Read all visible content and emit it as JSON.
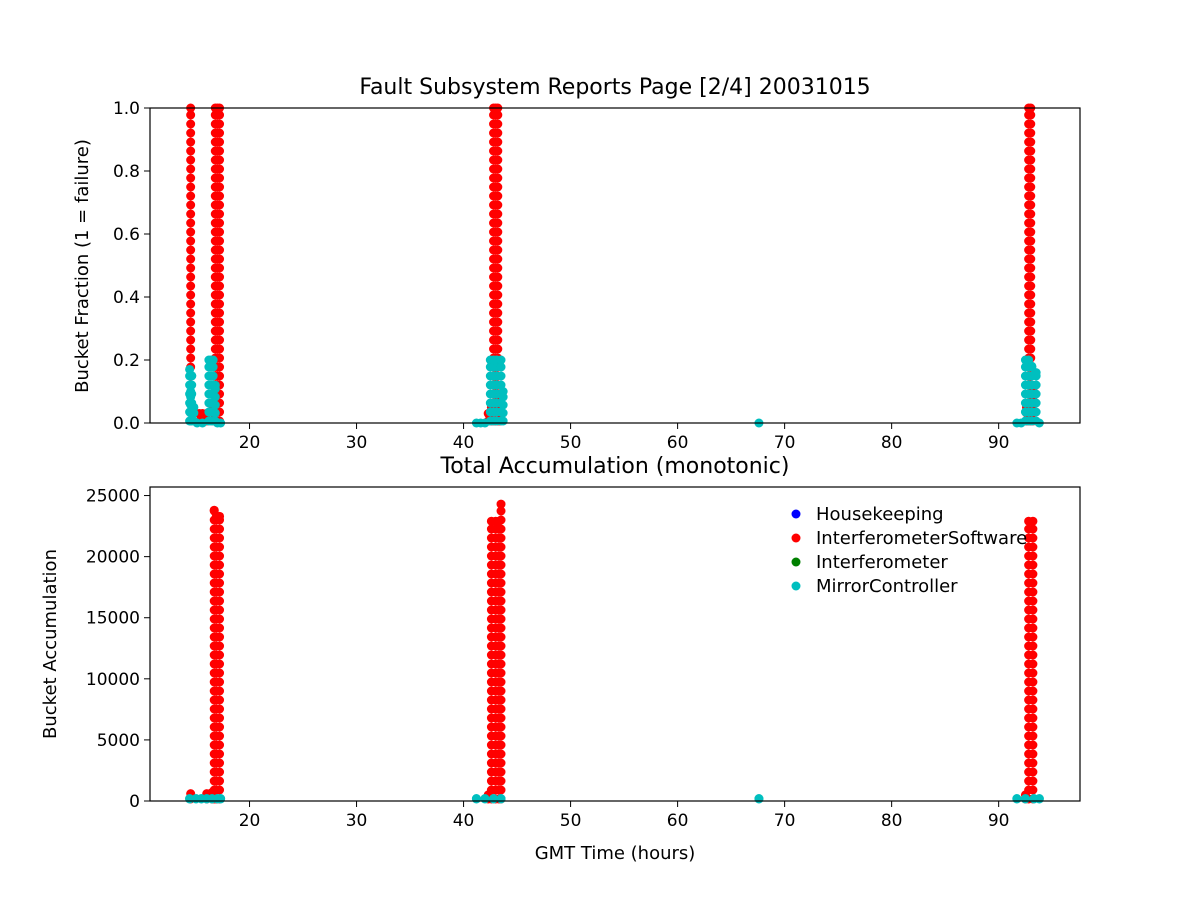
{
  "colors": {
    "Housekeeping": "#0000ff",
    "InterferometerSoftware": "#ff0000",
    "Interferometer": "#008000",
    "MirrorController": "#00bfbf"
  },
  "chart_data": [
    {
      "type": "scatter",
      "title": "Fault Subsystem Reports Page [2/4] 20031015",
      "xlabel": "",
      "ylabel": "Bucket Fraction (1 = failure)",
      "xlim": [
        10.7,
        97.6
      ],
      "ylim": [
        0,
        1
      ],
      "xticks": [
        20,
        30,
        40,
        50,
        60,
        70,
        80,
        90
      ],
      "yticks": [
        0.0,
        0.2,
        0.4,
        0.6,
        0.8,
        1.0
      ],
      "ytick_labels": [
        "0.0",
        "0.2",
        "0.4",
        "0.6",
        "0.8",
        "1.0"
      ],
      "series": [
        {
          "name": "InterferometerSoftware",
          "points": [
            [
              14.5,
              1.0
            ],
            [
              15.3,
              0.03
            ],
            [
              15.6,
              0.03
            ],
            [
              16.0,
              0.03
            ],
            [
              16.6,
              0.05
            ],
            [
              16.8,
              1.0
            ],
            [
              17.0,
              1.0
            ],
            [
              17.2,
              1.0
            ],
            [
              42.3,
              0.03
            ],
            [
              42.6,
              0.05
            ],
            [
              42.8,
              1.0
            ],
            [
              43.0,
              1.0
            ],
            [
              43.2,
              1.0
            ],
            [
              43.4,
              0.08
            ],
            [
              92.6,
              0.05
            ],
            [
              92.8,
              1.0
            ],
            [
              93.0,
              1.0
            ],
            [
              93.2,
              0.12
            ]
          ]
        },
        {
          "name": "MirrorController",
          "points": [
            [
              14.4,
              0.17
            ],
            [
              14.5,
              0.1
            ],
            [
              14.6,
              0.15
            ],
            [
              14.8,
              0.05
            ],
            [
              15.1,
              0.0
            ],
            [
              15.6,
              0.0
            ],
            [
              16.2,
              0.2
            ],
            [
              16.4,
              0.2
            ],
            [
              16.6,
              0.2
            ],
            [
              16.8,
              0.12
            ],
            [
              17.0,
              0.0
            ],
            [
              17.3,
              0.0
            ],
            [
              41.2,
              0.0
            ],
            [
              41.6,
              0.0
            ],
            [
              42.0,
              0.0
            ],
            [
              42.5,
              0.2
            ],
            [
              42.8,
              0.2
            ],
            [
              43.1,
              0.2
            ],
            [
              43.5,
              0.2
            ],
            [
              43.7,
              0.1
            ],
            [
              67.6,
              0.0
            ],
            [
              91.7,
              0.0
            ],
            [
              92.1,
              0.0
            ],
            [
              92.5,
              0.2
            ],
            [
              92.8,
              0.2
            ],
            [
              93.1,
              0.18
            ],
            [
              93.5,
              0.16
            ],
            [
              93.8,
              0.0
            ]
          ]
        }
      ]
    },
    {
      "type": "scatter",
      "title": "Total Accumulation (monotonic)",
      "xlabel": "GMT Time (hours)",
      "ylabel": "Bucket Accumulation",
      "xlim": [
        10.7,
        97.6
      ],
      "ylim": [
        0,
        25700
      ],
      "xticks": [
        20,
        30,
        40,
        50,
        60,
        70,
        80,
        90
      ],
      "yticks": [
        0,
        5000,
        10000,
        15000,
        20000,
        25000
      ],
      "ytick_labels": [
        "0",
        "5000",
        "10000",
        "15000",
        "20000",
        "25000"
      ],
      "legend": {
        "location": "upper-right",
        "entries": [
          "Housekeeping",
          "InterferometerSoftware",
          "Interferometer",
          "MirrorController"
        ]
      },
      "series": [
        {
          "name": "InterferometerSoftware",
          "points": [
            [
              14.5,
              600
            ],
            [
              16.0,
              600
            ],
            [
              16.5,
              700
            ],
            [
              16.7,
              23800
            ],
            [
              16.9,
              23300
            ],
            [
              17.2,
              23300
            ],
            [
              42.3,
              500
            ],
            [
              42.6,
              22900
            ],
            [
              43.0,
              22900
            ],
            [
              43.3,
              22900
            ],
            [
              43.5,
              24300
            ],
            [
              92.5,
              500
            ],
            [
              92.8,
              22900
            ],
            [
              93.2,
              22900
            ]
          ]
        },
        {
          "name": "MirrorController",
          "points": [
            [
              14.4,
              200
            ],
            [
              15.0,
              200
            ],
            [
              15.5,
              200
            ],
            [
              16.0,
              200
            ],
            [
              16.5,
              200
            ],
            [
              17.0,
              200
            ],
            [
              17.3,
              200
            ],
            [
              41.2,
              200
            ],
            [
              42.0,
              200
            ],
            [
              42.8,
              200
            ],
            [
              43.5,
              200
            ],
            [
              67.6,
              200
            ],
            [
              91.7,
              200
            ],
            [
              92.5,
              200
            ],
            [
              93.3,
              200
            ],
            [
              93.8,
              200
            ]
          ]
        }
      ]
    }
  ]
}
